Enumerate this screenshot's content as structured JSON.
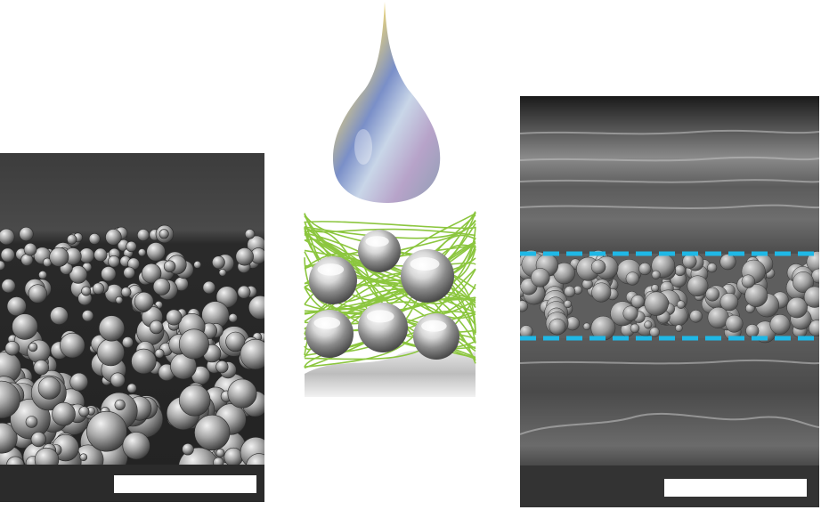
{
  "figure": {
    "panels": [
      {
        "id": "left",
        "kind": "sem-cross-section-particles"
      },
      {
        "id": "center",
        "kind": "schematic-droplet-fibers-spheres"
      },
      {
        "id": "right",
        "kind": "sem-cross-section-layered"
      }
    ],
    "colors": {
      "fiber_green": "#8cc63f",
      "dashed_line_cyan": "#1fb8e6",
      "scale_bar": "#ffffff"
    }
  }
}
